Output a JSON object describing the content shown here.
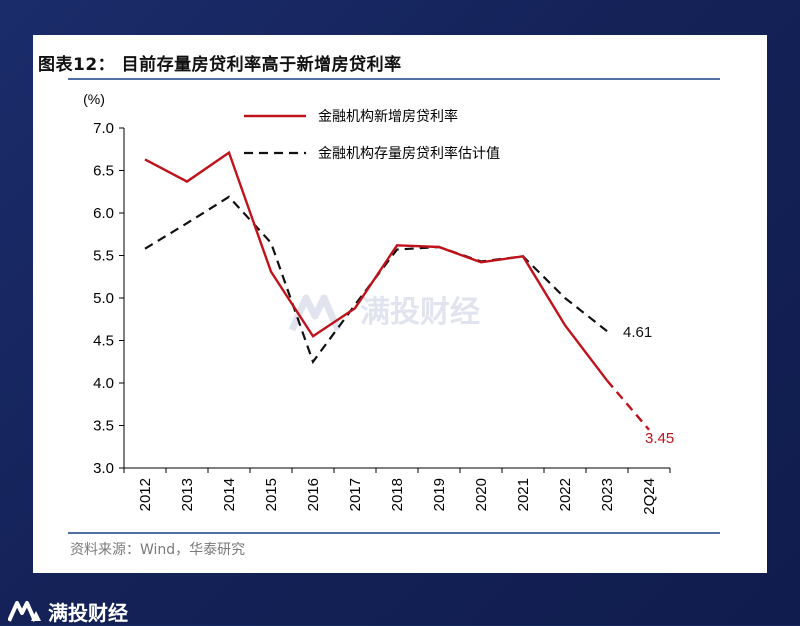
{
  "page": {
    "figure_title": "图表12：  目前存量房贷利率高于新增房贷利率",
    "source": "资料来源：Wind，华泰研究",
    "watermark": "满投财经",
    "brand": "满投财经"
  },
  "chart_data": {
    "type": "line",
    "title": "",
    "ylabel": "(%)",
    "xlabel": "",
    "ylim": [
      3.0,
      7.0
    ],
    "yticks": [
      "3.0",
      "3.5",
      "4.0",
      "4.5",
      "5.0",
      "5.5",
      "6.0",
      "6.5",
      "7.0"
    ],
    "categories": [
      "2012",
      "2013",
      "2014",
      "2015",
      "2016",
      "2017",
      "2018",
      "2019",
      "2020",
      "2021",
      "2022",
      "2023",
      "2Q24"
    ],
    "series": [
      {
        "name": "金融机构新增房贷利率",
        "color": "#c0121b",
        "style": "solid",
        "values": [
          6.63,
          6.37,
          6.71,
          5.31,
          4.55,
          4.88,
          5.62,
          5.6,
          5.42,
          5.49,
          4.68,
          4.03,
          3.45
        ],
        "dashed_from_index": 11
      },
      {
        "name": "金融机构存量房贷利率估计值",
        "color": "#111111",
        "style": "dashed",
        "values": [
          5.58,
          5.88,
          6.19,
          5.65,
          4.25,
          4.92,
          5.57,
          5.6,
          5.43,
          5.49,
          5.0,
          4.61,
          null
        ]
      }
    ],
    "annotations": [
      {
        "text": "4.61",
        "color": "#111111"
      },
      {
        "text": "3.45",
        "color": "#c0121b"
      }
    ],
    "legend_position": "top-center",
    "grid": false
  }
}
